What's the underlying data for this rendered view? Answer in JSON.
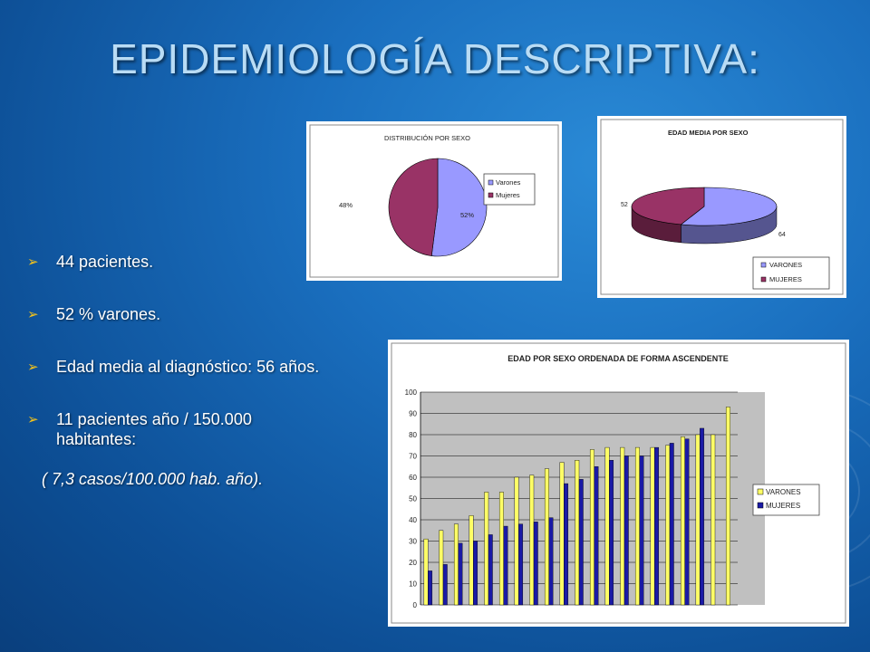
{
  "slide": {
    "title": "EPIDEMIOLOGÍA DESCRIPTIVA:",
    "bullets": [
      {
        "lines": [
          "44 pacientes."
        ]
      },
      {
        "lines": [
          "52 % varones."
        ]
      },
      {
        "lines": [
          "Edad media al diagnóstico: 56 años."
        ]
      },
      {
        "lines": [
          "11 pacientes año / 150.000",
          "habitantes:"
        ]
      }
    ],
    "note": "( 7,3 casos/100.000 hab. año).",
    "colors": {
      "accent_bullet": "#f3c21b",
      "title": "#b9dcf5"
    }
  },
  "chart_data": [
    {
      "type": "pie",
      "title": "DISTRIBUCIÓN POR SEXO",
      "legend_position": "right",
      "slices": [
        {
          "label": "Varones",
          "value": 52,
          "data_label": "52%",
          "color": "#9999ff"
        },
        {
          "label": "Mujeres",
          "value": 48,
          "data_label": "48%",
          "color": "#993366"
        }
      ]
    },
    {
      "type": "pie",
      "style": "3d",
      "title": "EDAD MEDIA POR SEXO",
      "legend_position": "bottom-right",
      "slices": [
        {
          "label": "VARONES",
          "value": 64,
          "data_label": "64",
          "color": "#9999ff"
        },
        {
          "label": "MUJERES",
          "value": 52,
          "data_label": "52",
          "color": "#993366"
        }
      ]
    },
    {
      "type": "bar",
      "title": "EDAD POR SEXO  ORDENADA DE FORMA ASCENDENTE",
      "ylim": [
        0,
        100
      ],
      "yticks": [
        0,
        10,
        20,
        30,
        40,
        50,
        60,
        70,
        80,
        90,
        100
      ],
      "grid": true,
      "legend_position": "right",
      "series": [
        {
          "name": "VARONES",
          "color": "#ffff66",
          "values": [
            31,
            35,
            38,
            42,
            53,
            53,
            60,
            61,
            64,
            67,
            68,
            73,
            74,
            74,
            74,
            74,
            75,
            79,
            80,
            80,
            93
          ]
        },
        {
          "name": "MUJERES",
          "color": "#1a1aa6",
          "values": [
            16,
            19,
            29,
            30,
            33,
            37,
            38,
            39,
            41,
            57,
            59,
            65,
            68,
            70,
            70,
            74,
            76,
            78,
            83
          ]
        }
      ]
    }
  ]
}
